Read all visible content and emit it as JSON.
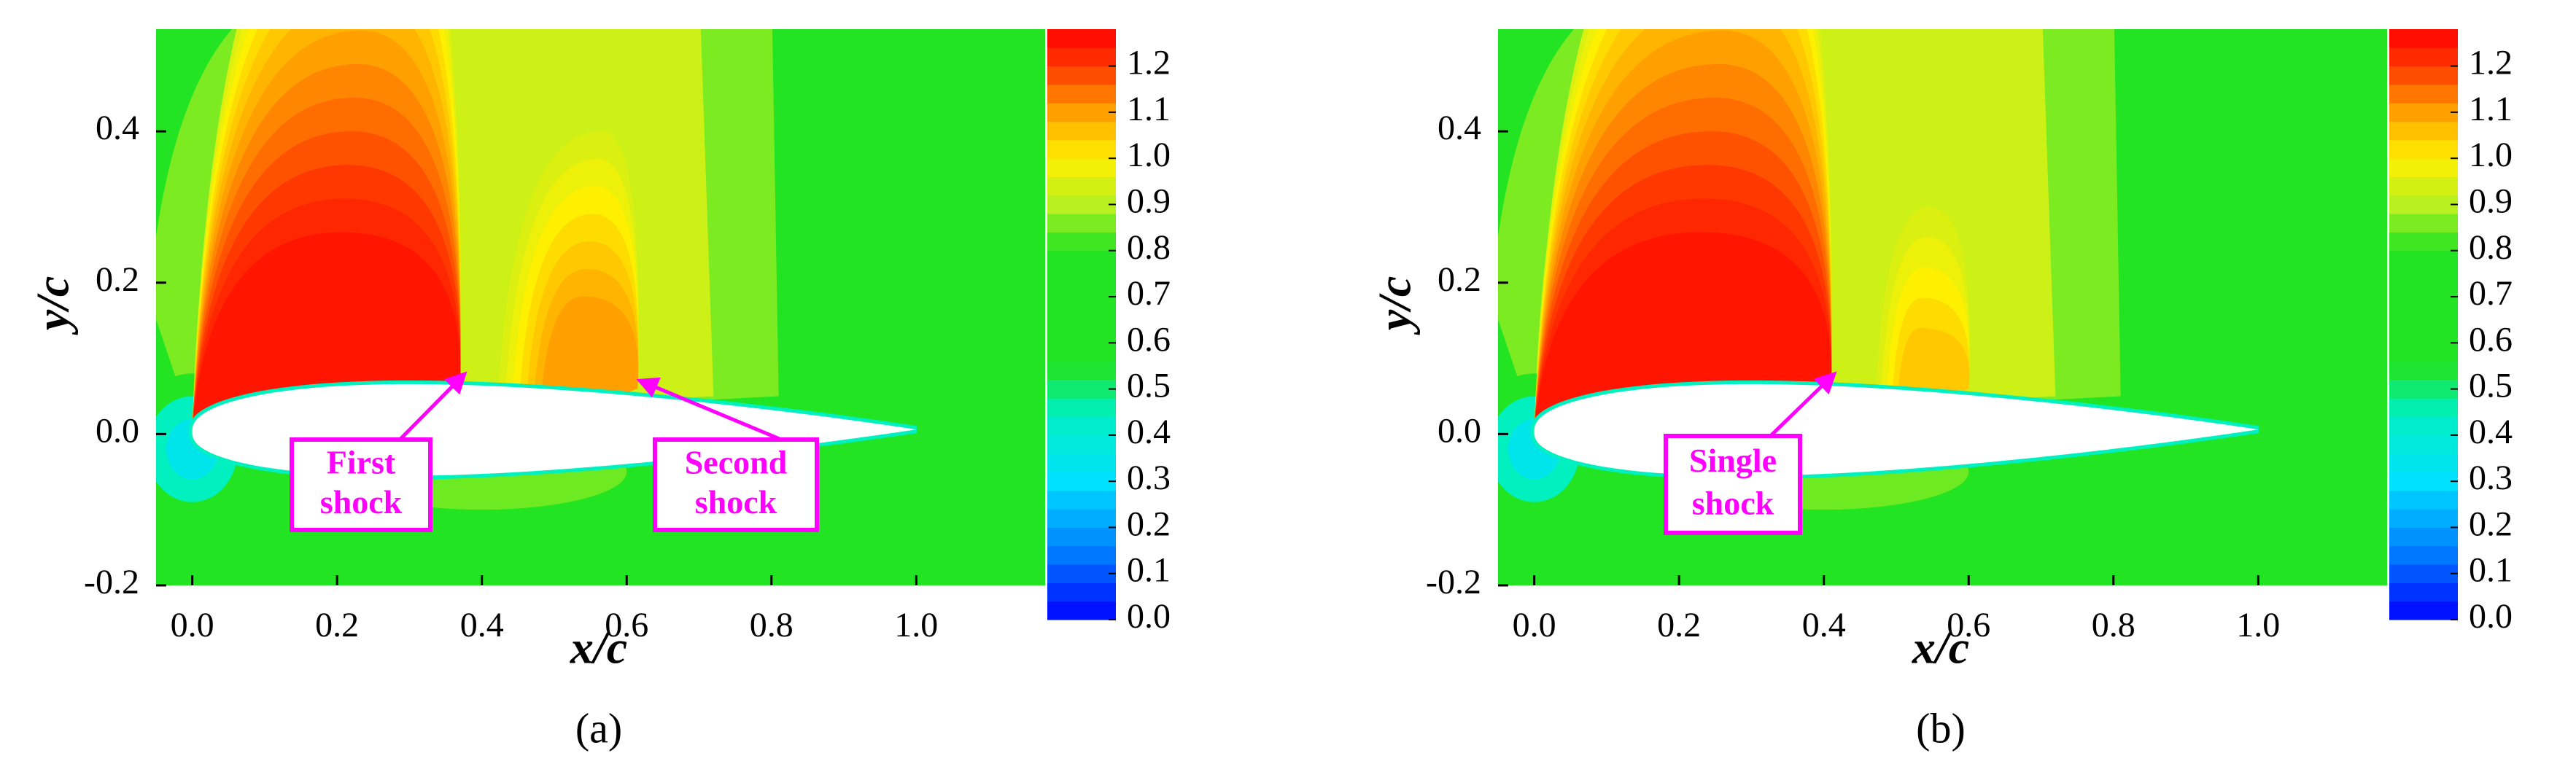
{
  "chart_data": [
    {
      "type": "contour",
      "xlabel": "x/c",
      "ylabel": "y/c",
      "caption": "(a)",
      "xlim": [
        -0.05,
        1.178
      ],
      "ylim": [
        -0.2,
        0.535
      ],
      "xticks": [
        {
          "value": 0,
          "label": "0.0"
        },
        0.2,
        0.4,
        0.6,
        0.8,
        {
          "value": 1,
          "label": "1.0"
        }
      ],
      "yticks": [
        -0.2,
        {
          "value": 0,
          "label": "0.0"
        },
        0.2,
        0.4
      ],
      "clim": [
        0,
        1.28
      ],
      "cticks": [
        {
          "value": 0,
          "label": "0.0"
        },
        0.1,
        0.2,
        0.3,
        0.4,
        0.5,
        0.6,
        0.7,
        0.8,
        0.9,
        {
          "value": 1,
          "label": "1.0"
        },
        1.1,
        1.2
      ],
      "colormap": [
        {
          "value": 0,
          "color": "#0000ff"
        },
        {
          "value": 0.15,
          "color": "#0080ff"
        },
        {
          "value": 0.3,
          "color": "#00e0ff"
        },
        {
          "value": 0.45,
          "color": "#00f0c0"
        },
        {
          "value": 0.55,
          "color": "#22e422"
        },
        {
          "value": 0.8,
          "color": "#22e422"
        },
        {
          "value": 0.9,
          "color": "#b8f020"
        },
        {
          "value": 1.0,
          "color": "#fff000"
        },
        {
          "value": 1.1,
          "color": "#ffa000"
        },
        {
          "value": 1.2,
          "color": "#ff3800"
        },
        {
          "value": 1.28,
          "color": "#ff0000"
        }
      ],
      "annotations": [
        {
          "lines": [
            "First",
            "shock"
          ]
        },
        {
          "lines": [
            "Second",
            "shock"
          ]
        }
      ]
    },
    {
      "type": "contour",
      "xlabel": "x/c",
      "ylabel": "y/c",
      "caption": "(b)",
      "xlim": [
        -0.05,
        1.178
      ],
      "ylim": [
        -0.2,
        0.535
      ],
      "xticks": [
        {
          "value": 0,
          "label": "0.0"
        },
        0.2,
        0.4,
        0.6,
        0.8,
        {
          "value": 1,
          "label": "1.0"
        }
      ],
      "yticks": [
        -0.2,
        {
          "value": 0,
          "label": "0.0"
        },
        0.2,
        0.4
      ],
      "clim": [
        0,
        1.28
      ],
      "cticks": [
        {
          "value": 0,
          "label": "0.0"
        },
        0.1,
        0.2,
        0.3,
        0.4,
        0.5,
        0.6,
        0.7,
        0.8,
        0.9,
        {
          "value": 1,
          "label": "1.0"
        },
        1.1,
        1.2
      ],
      "colormap": [
        {
          "value": 0,
          "color": "#0000ff"
        },
        {
          "value": 0.15,
          "color": "#0080ff"
        },
        {
          "value": 0.3,
          "color": "#00e0ff"
        },
        {
          "value": 0.45,
          "color": "#00f0c0"
        },
        {
          "value": 0.55,
          "color": "#22e422"
        },
        {
          "value": 0.8,
          "color": "#22e422"
        },
        {
          "value": 0.9,
          "color": "#b8f020"
        },
        {
          "value": 1.0,
          "color": "#fff000"
        },
        {
          "value": 1.1,
          "color": "#ffa000"
        },
        {
          "value": 1.2,
          "color": "#ff3800"
        },
        {
          "value": 1.28,
          "color": "#ff0000"
        }
      ],
      "annotations": [
        {
          "lines": [
            "Single",
            "shock"
          ]
        }
      ]
    }
  ]
}
